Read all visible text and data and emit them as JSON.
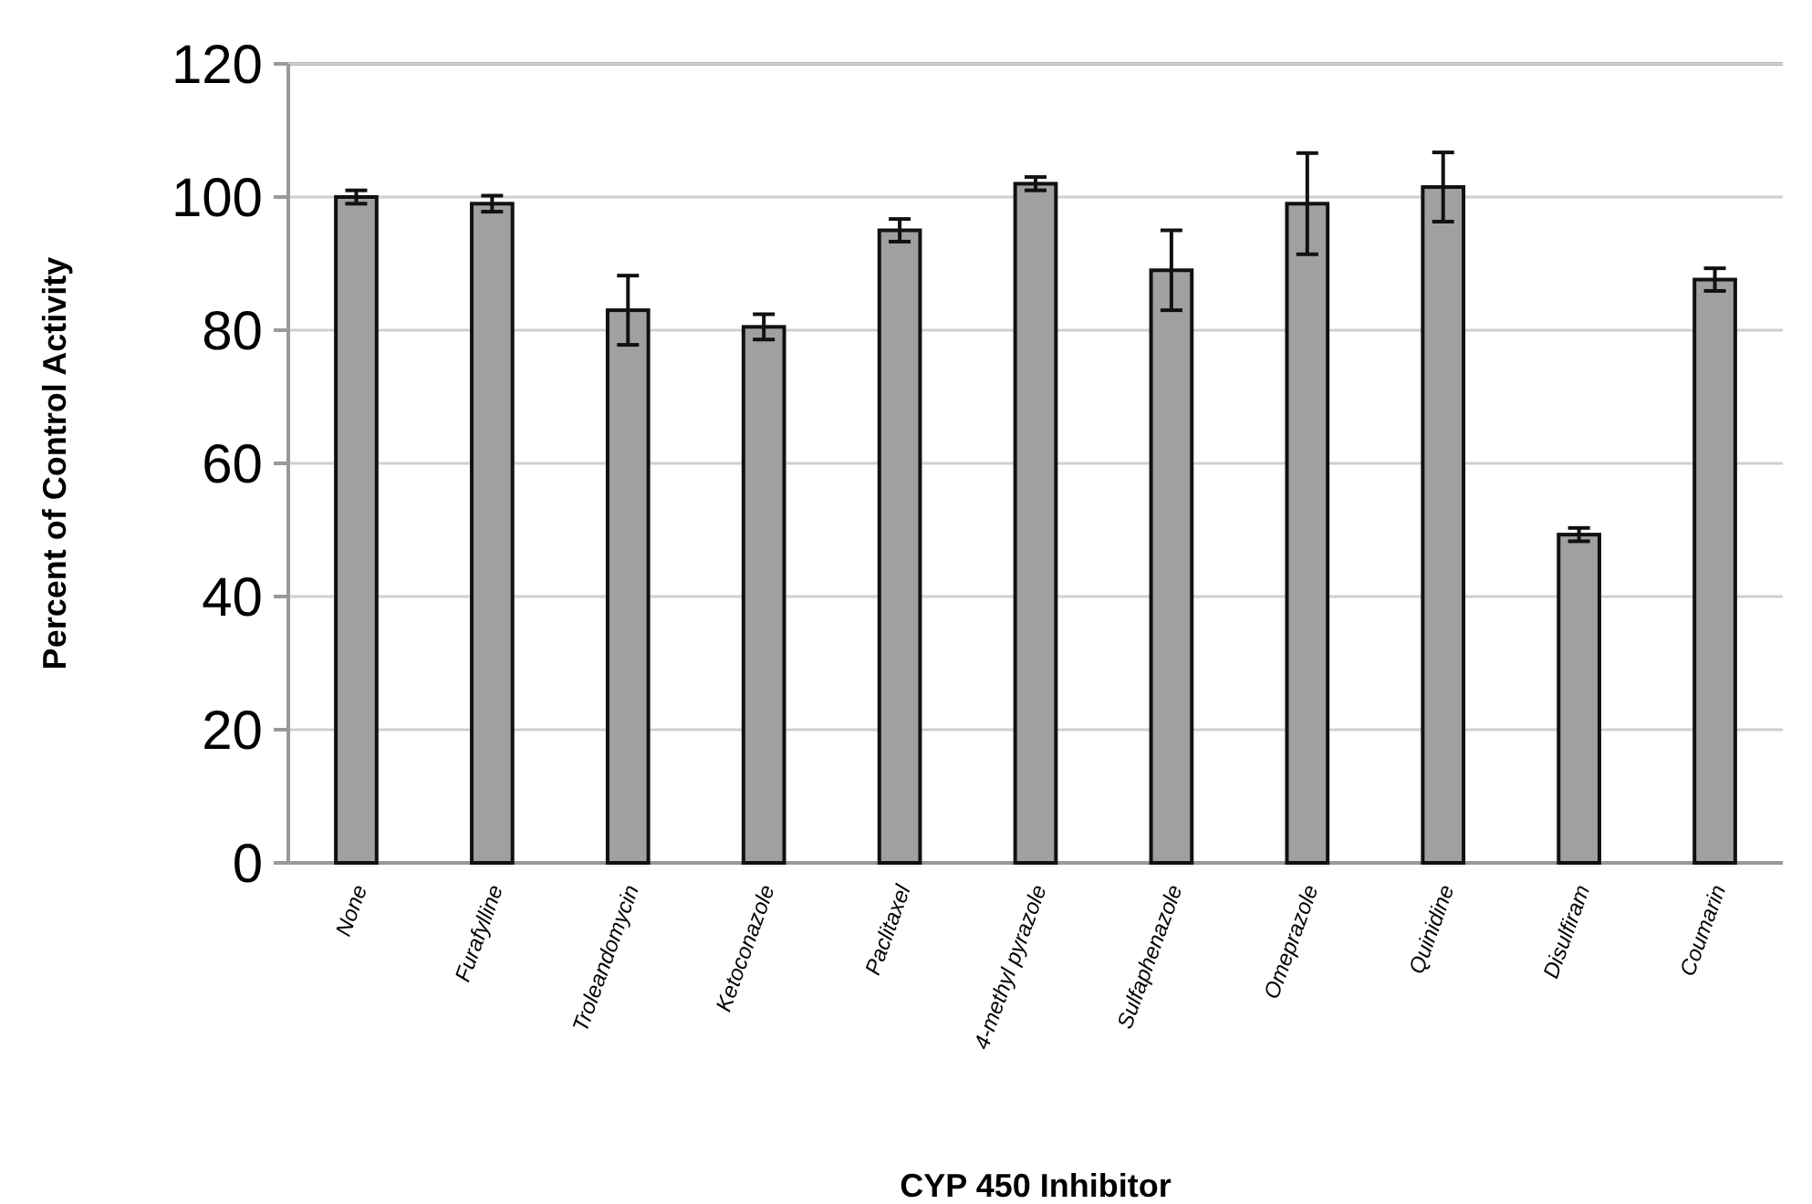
{
  "chart_data": {
    "type": "bar",
    "xlabel": "CYP 450 Inhibitor",
    "ylabel": "Percent of Control Activity",
    "categories": [
      "None",
      "Furafylline",
      "Troleandomycin",
      "Ketoconazole",
      "Paclitaxel",
      "4-methyl pyrazole",
      "Sulfaphenazole",
      "Omeprazole",
      "Quinidine",
      "Disulfiram",
      "Coumarin"
    ],
    "values": [
      100,
      99,
      83,
      80.5,
      95,
      102,
      89,
      99,
      101.5,
      49.3,
      87.6
    ],
    "errors": [
      1,
      1.2,
      5.2,
      1.9,
      1.7,
      1,
      6,
      7.6,
      5.2,
      1,
      1.7
    ],
    "color": "#a0a0a0",
    "ylim": [
      0,
      120
    ],
    "yticks": [
      0,
      20,
      40,
      60,
      80,
      100,
      120
    ],
    "grid": "y"
  }
}
